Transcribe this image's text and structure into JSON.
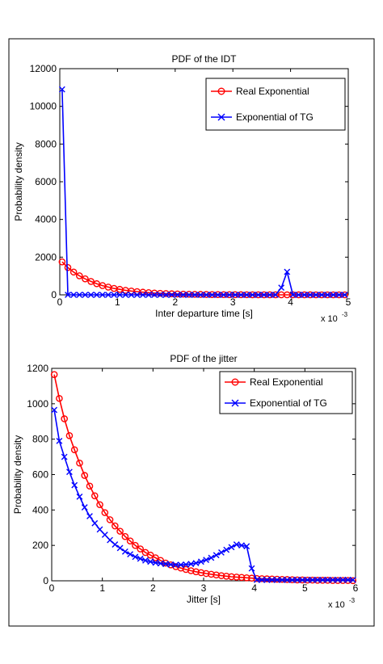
{
  "chart_data": [
    {
      "type": "line",
      "title": "PDF of the IDT",
      "xlabel": "Inter departure time [s]",
      "ylabel": "Probability density",
      "xlim": [
        0,
        5
      ],
      "ylim": [
        0,
        12000
      ],
      "x_multiplier": "x 10",
      "x_multiplier_exp": "-3",
      "xticks": [
        0,
        1,
        2,
        3,
        4,
        5
      ],
      "yticks": [
        0,
        2000,
        4000,
        6000,
        8000,
        10000,
        12000
      ],
      "grid": false,
      "legend": "top-right",
      "series": [
        {
          "name": "Real Exponential",
          "color": "#ff0000",
          "marker": "circle",
          "x": [
            0.04,
            0.14,
            0.24,
            0.34,
            0.44,
            0.54,
            0.64,
            0.74,
            0.84,
            0.94,
            1.04,
            1.14,
            1.24,
            1.34,
            1.44,
            1.54,
            1.64,
            1.74,
            1.84,
            1.94,
            2.04,
            2.14,
            2.24,
            2.34,
            2.44,
            2.54,
            2.64,
            2.74,
            2.84,
            2.94,
            3.04,
            3.14,
            3.24,
            3.34,
            3.44,
            3.54,
            3.64,
            3.74,
            3.84,
            3.94,
            4.04,
            4.14,
            4.24,
            4.34,
            4.44,
            4.54,
            4.64,
            4.74,
            4.84,
            4.94
          ],
          "y": [
            1750,
            1450,
            1210,
            1010,
            850,
            710,
            590,
            490,
            410,
            340,
            290,
            240,
            200,
            170,
            140,
            115,
            95,
            80,
            67,
            55,
            46,
            38,
            32,
            27,
            22,
            18,
            15,
            13,
            11,
            9,
            7,
            6,
            5,
            4,
            3,
            3,
            2,
            2,
            2,
            1,
            1,
            1,
            1,
            1,
            0,
            0,
            0,
            0,
            0,
            0
          ]
        },
        {
          "name": "Exponential of TG",
          "color": "#0000ff",
          "marker": "x",
          "x": [
            0.04,
            0.14,
            0.24,
            0.34,
            0.44,
            0.54,
            0.64,
            0.74,
            0.84,
            0.94,
            1.04,
            1.14,
            1.24,
            1.34,
            1.44,
            1.54,
            1.64,
            1.74,
            1.84,
            1.94,
            2.04,
            2.14,
            2.24,
            2.34,
            2.44,
            2.54,
            2.64,
            2.74,
            2.84,
            2.94,
            3.04,
            3.14,
            3.24,
            3.34,
            3.44,
            3.54,
            3.64,
            3.74,
            3.84,
            3.94,
            4.04,
            4.14,
            4.24,
            4.34,
            4.44,
            4.54,
            4.64,
            4.74,
            4.84,
            4.94
          ],
          "y": [
            10900,
            0,
            0,
            0,
            0,
            0,
            0,
            0,
            0,
            0,
            0,
            0,
            0,
            0,
            0,
            0,
            0,
            0,
            0,
            0,
            0,
            0,
            0,
            0,
            0,
            0,
            0,
            0,
            0,
            0,
            0,
            0,
            0,
            0,
            0,
            0,
            0,
            0,
            380,
            1220,
            0,
            0,
            0,
            0,
            0,
            0,
            0,
            0,
            0,
            0
          ]
        }
      ]
    },
    {
      "type": "line",
      "title": "PDF of the jitter",
      "xlabel": "Jitter [s]",
      "ylabel": "Probability density",
      "xlim": [
        0,
        6
      ],
      "ylim": [
        0,
        1200
      ],
      "x_multiplier": "x 10",
      "x_multiplier_exp": "-3",
      "xticks": [
        0,
        1,
        2,
        3,
        4,
        5,
        6
      ],
      "yticks": [
        0,
        200,
        400,
        600,
        800,
        1000,
        1200
      ],
      "grid": false,
      "legend": "top-right",
      "series": [
        {
          "name": "Real Exponential",
          "color": "#ff0000",
          "marker": "circle",
          "x": [
            0.05,
            0.15,
            0.25,
            0.35,
            0.45,
            0.55,
            0.65,
            0.75,
            0.85,
            0.95,
            1.05,
            1.15,
            1.25,
            1.35,
            1.45,
            1.55,
            1.65,
            1.75,
            1.85,
            1.95,
            2.05,
            2.15,
            2.25,
            2.35,
            2.45,
            2.55,
            2.65,
            2.75,
            2.85,
            2.95,
            3.05,
            3.15,
            3.25,
            3.35,
            3.45,
            3.55,
            3.65,
            3.75,
            3.85,
            3.95,
            4.05,
            4.15,
            4.25,
            4.35,
            4.45,
            4.55,
            4.65,
            4.75,
            4.85,
            4.95,
            5.05,
            5.15,
            5.25,
            5.35,
            5.45,
            5.55,
            5.65,
            5.75,
            5.85,
            5.95
          ],
          "y": [
            1165,
            1030,
            915,
            820,
            740,
            665,
            595,
            535,
            480,
            430,
            385,
            345,
            310,
            280,
            250,
            225,
            200,
            180,
            160,
            145,
            130,
            115,
            100,
            90,
            80,
            72,
            64,
            57,
            51,
            46,
            41,
            37,
            33,
            29,
            26,
            23,
            21,
            19,
            17,
            15,
            13,
            12,
            11,
            10,
            9,
            8,
            7,
            6,
            5,
            5,
            4,
            4,
            3,
            3,
            3,
            2,
            2,
            2,
            2,
            1
          ]
        },
        {
          "name": "Exponential of TG",
          "color": "#0000ff",
          "marker": "x",
          "x": [
            0.05,
            0.15,
            0.25,
            0.35,
            0.45,
            0.55,
            0.65,
            0.75,
            0.85,
            0.95,
            1.05,
            1.15,
            1.25,
            1.35,
            1.45,
            1.55,
            1.65,
            1.75,
            1.85,
            1.95,
            2.05,
            2.15,
            2.25,
            2.35,
            2.45,
            2.55,
            2.65,
            2.75,
            2.85,
            2.95,
            3.05,
            3.15,
            3.25,
            3.35,
            3.45,
            3.55,
            3.65,
            3.75,
            3.85,
            3.95,
            4.05,
            4.15,
            4.25,
            4.35,
            4.45,
            4.55,
            4.65,
            4.75,
            4.85,
            4.95,
            5.05,
            5.15,
            5.25,
            5.35,
            5.45,
            5.55,
            5.65,
            5.75,
            5.85,
            5.95
          ],
          "y": [
            965,
            790,
            700,
            615,
            540,
            475,
            415,
            365,
            325,
            290,
            260,
            230,
            205,
            185,
            165,
            150,
            135,
            125,
            115,
            108,
            102,
            98,
            95,
            92,
            90,
            90,
            92,
            95,
            100,
            108,
            118,
            130,
            145,
            160,
            175,
            190,
            205,
            200,
            195,
            70,
            5,
            5,
            5,
            5,
            5,
            5,
            5,
            5,
            5,
            5,
            5,
            5,
            5,
            5,
            5,
            5,
            5,
            5,
            5,
            5
          ]
        }
      ]
    }
  ]
}
